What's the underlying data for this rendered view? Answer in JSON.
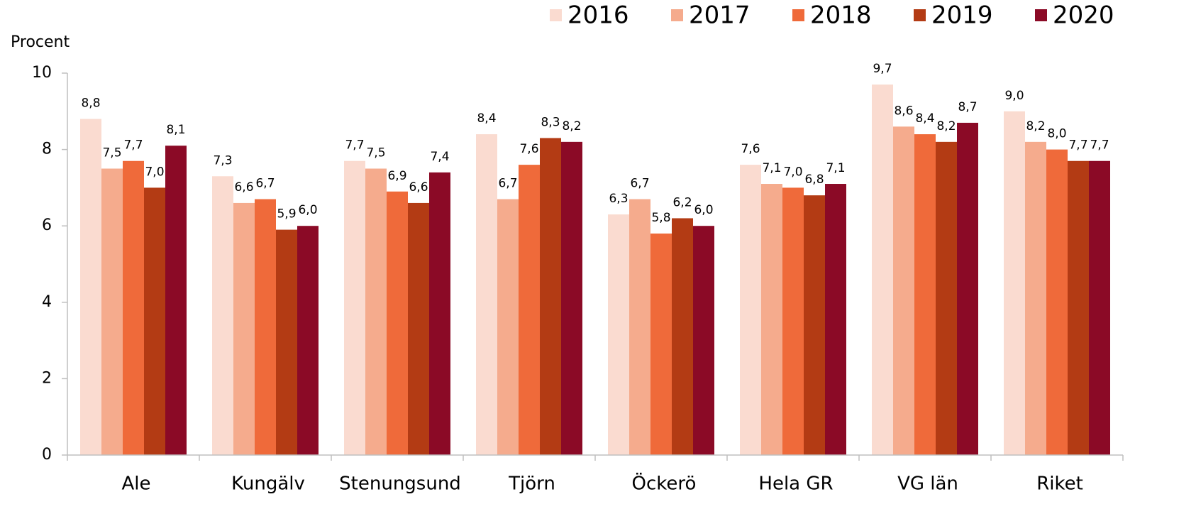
{
  "chart_data": {
    "type": "bar",
    "y_label": "Procent",
    "categories": [
      "Ale",
      "Kungälv",
      "Stenungsund",
      "Tjörn",
      "Öckerö",
      "Hela GR",
      "VG län",
      "Riket"
    ],
    "series": [
      {
        "name": "2016",
        "color": "#fadbd0",
        "values": [
          8.8,
          7.3,
          7.7,
          8.4,
          6.3,
          7.6,
          9.7,
          9.0
        ],
        "value_labels": [
          "8,8",
          "7,3",
          "7,7",
          "8,4",
          "6,3",
          "7,6",
          "9,7",
          "9,0"
        ]
      },
      {
        "name": "2017",
        "color": "#f5ab8d",
        "values": [
          7.5,
          6.6,
          7.5,
          6.7,
          6.7,
          7.1,
          8.6,
          8.2
        ],
        "value_labels": [
          "7,5",
          "6,6",
          "7,5",
          "6,7",
          "6,7",
          "7,1",
          "8,6",
          "8,2"
        ]
      },
      {
        "name": "2018",
        "color": "#ef6a3a",
        "values": [
          7.7,
          6.7,
          6.9,
          7.6,
          5.8,
          7.0,
          8.4,
          8.0
        ],
        "value_labels": [
          "7,7",
          "6,7",
          "6,9",
          "7,6",
          "5,8",
          "7,0",
          "8,4",
          "8,0"
        ]
      },
      {
        "name": "2019",
        "color": "#b33b14",
        "values": [
          7.0,
          5.9,
          6.6,
          8.3,
          6.2,
          6.8,
          8.2,
          7.7
        ],
        "value_labels": [
          "7,0",
          "5,9",
          "6,6",
          "8,3",
          "6,2",
          "6,8",
          "8,2",
          "7,7"
        ]
      },
      {
        "name": "2020",
        "color": "#8b0a26",
        "values": [
          8.1,
          6.0,
          7.4,
          8.2,
          6.0,
          7.1,
          8.7,
          7.7
        ],
        "value_labels": [
          "8,1",
          "6,0",
          "7,4",
          "8,2",
          "6,0",
          "7,1",
          "8,7",
          "7,7"
        ]
      }
    ],
    "ylim": [
      0,
      10
    ],
    "yticks": [
      0,
      2,
      4,
      6,
      8,
      10
    ],
    "grid": false,
    "legend": "top-right"
  }
}
